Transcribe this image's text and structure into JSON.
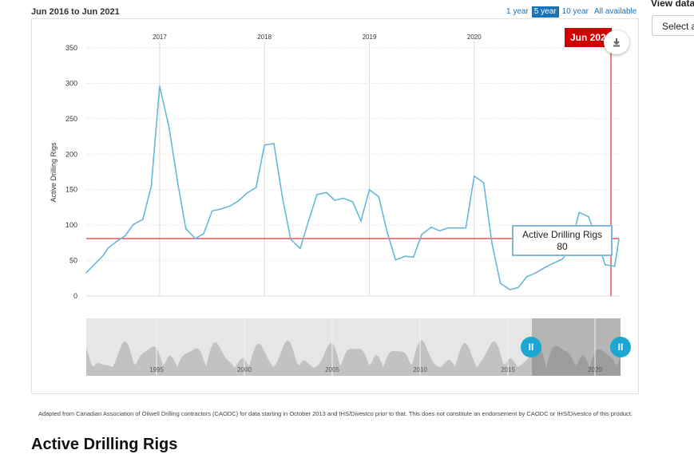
{
  "range_label": {
    "from": "Jun 2016",
    "sep": "to",
    "to": "Jun 2021"
  },
  "range_buttons": [
    {
      "label": "1 year",
      "active": false
    },
    {
      "label": "5 year",
      "active": true
    },
    {
      "label": "10 year",
      "active": false
    },
    {
      "label": "All available",
      "active": false
    }
  ],
  "view_data": {
    "label": "View data",
    "select_value": "Select a"
  },
  "accent_color": "#1a73b8",
  "line_color": "#68b8d8",
  "marker_color": "#d40000",
  "chart_data": {
    "type": "line",
    "xlabel": "",
    "ylabel": "Active Drilling Rigs",
    "ylim": [
      0,
      350
    ],
    "y_ticks": [
      0,
      50,
      100,
      150,
      200,
      250,
      300,
      350
    ],
    "x_ticks": [
      "2017",
      "2018",
      "2019",
      "2020"
    ],
    "x_tick_positions": [
      2017,
      2018,
      2019,
      2020
    ],
    "grid": true,
    "series": [
      {
        "values": [
          [
            2016.42,
            33
          ],
          [
            2016.58,
            57
          ],
          [
            2016.63,
            68
          ],
          [
            2016.71,
            77
          ],
          [
            2016.79,
            85
          ],
          [
            2016.87,
            101
          ],
          [
            2016.96,
            108
          ],
          [
            2017.04,
            155
          ],
          [
            2017.12,
            296
          ],
          [
            2017.21,
            238
          ],
          [
            2017.29,
            162
          ],
          [
            2017.37,
            95
          ],
          [
            2017.46,
            81
          ],
          [
            2017.54,
            88
          ],
          [
            2017.62,
            120
          ],
          [
            2017.71,
            123
          ],
          [
            2017.79,
            127
          ],
          [
            2017.87,
            134
          ],
          [
            2017.96,
            146
          ],
          [
            2018.04,
            153
          ],
          [
            2018.12,
            213
          ],
          [
            2018.21,
            215
          ],
          [
            2018.29,
            140
          ],
          [
            2018.37,
            80
          ],
          [
            2018.46,
            67
          ],
          [
            2018.54,
            106
          ],
          [
            2018.62,
            143
          ],
          [
            2018.71,
            146
          ],
          [
            2018.79,
            135
          ],
          [
            2018.87,
            138
          ],
          [
            2018.96,
            133
          ],
          [
            2019.04,
            106
          ],
          [
            2019.12,
            150
          ],
          [
            2019.21,
            140
          ],
          [
            2019.29,
            90
          ],
          [
            2019.37,
            51
          ],
          [
            2019.46,
            56
          ],
          [
            2019.54,
            55
          ],
          [
            2019.62,
            87
          ],
          [
            2019.71,
            97
          ],
          [
            2019.79,
            92
          ],
          [
            2019.87,
            96
          ],
          [
            2019.96,
            96
          ],
          [
            2020.04,
            96
          ],
          [
            2020.12,
            169
          ],
          [
            2020.21,
            160
          ],
          [
            2020.29,
            74
          ],
          [
            2020.37,
            18
          ],
          [
            2020.46,
            9
          ],
          [
            2020.54,
            12
          ],
          [
            2020.62,
            27
          ],
          [
            2020.71,
            33
          ],
          [
            2020.79,
            40
          ],
          [
            2020.87,
            46
          ],
          [
            2020.96,
            52
          ],
          [
            2021.04,
            69
          ],
          [
            2021.12,
            118
          ],
          [
            2021.21,
            112
          ],
          [
            2021.29,
            80
          ],
          [
            2021.37,
            44
          ],
          [
            2021.46,
            42
          ],
          [
            2021.5,
            80
          ]
        ]
      }
    ],
    "current_marker": {
      "date_label": "Jun 2021",
      "series_label": "Active Drilling Rigs",
      "value": "80"
    }
  },
  "navigator": {
    "tick_labels": [
      "1995",
      "2000",
      "2005",
      "2010",
      "2015",
      "2020"
    ],
    "handle_glyph": "II"
  },
  "export_icon": "download-icon",
  "footnote": "Adapted from Canadian Association of Oilwell Drilling contractors (CAODC) for data starting in October 2013 and IHS/Divestco prior to that. This does not constitute an endorsement by CAODC or IHS/Divestco of this product.",
  "section_heading": "Active Drilling Rigs"
}
